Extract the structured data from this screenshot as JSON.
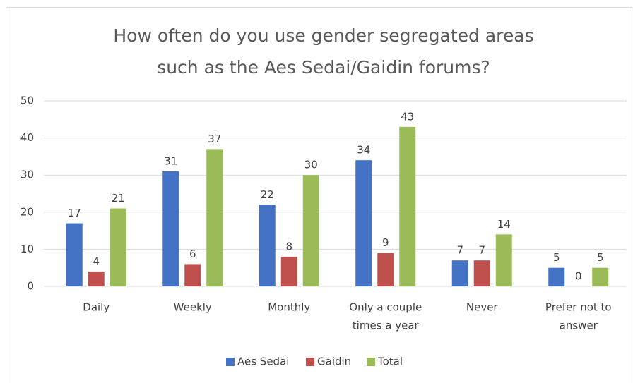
{
  "chart_data": {
    "type": "bar",
    "title": [
      "How often do you use gender segregated areas",
      "such as the Aes Sedai/Gaidin forums?"
    ],
    "categories": [
      [
        "Daily"
      ],
      [
        "Weekly"
      ],
      [
        "Monthly"
      ],
      [
        "Only a couple",
        "times a year"
      ],
      [
        "Never"
      ],
      [
        "Prefer not to",
        "answer"
      ]
    ],
    "series": [
      {
        "name": "Aes Sedai",
        "color": "#4472c4",
        "values": [
          17,
          31,
          22,
          34,
          7,
          5
        ]
      },
      {
        "name": "Gaidin",
        "color": "#c0504d",
        "values": [
          4,
          6,
          8,
          9,
          7,
          0
        ]
      },
      {
        "name": "Total",
        "color": "#9bbb59",
        "values": [
          21,
          37,
          30,
          43,
          14,
          5
        ]
      }
    ],
    "ylim": [
      0,
      50
    ],
    "yticks": [
      0,
      10,
      20,
      30,
      40,
      50
    ],
    "grid": true,
    "legend": "bottom"
  }
}
